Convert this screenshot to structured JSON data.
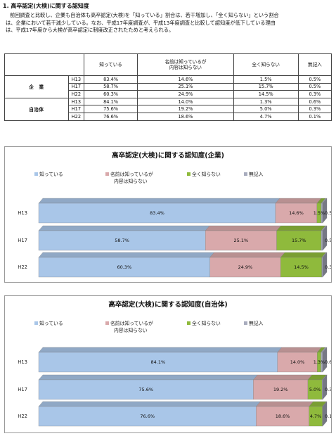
{
  "heading": "1. 高卒認定(大検)に関する認知度",
  "paragraph_lines": [
    "前回調査と比較し、企業も自治体も高卒認定(大検)を「知っている」割合は、若干増加し、「全く知らない」という割合",
    "は、企業において若干減少している。なお、平成17年度調査が、平成13年度調査と比較して認知度が低下している理由",
    "は、平成17年度から大検が高卒認定に制度改正されたためと考えられる。"
  ],
  "table": {
    "headers": [
      "知っている",
      "名前は知っているが\n内容は知らない",
      "全く知らない",
      "無記入"
    ],
    "groups": [
      {
        "label": "企　業",
        "rows": [
          {
            "year": "H13",
            "cells": [
              "83.4%",
              "14.6%",
              "1.5%",
              "0.5%"
            ]
          },
          {
            "year": "H17",
            "cells": [
              "58.7%",
              "25.1%",
              "15.7%",
              "0.5%"
            ]
          },
          {
            "year": "H22",
            "cells": [
              "60.3%",
              "24.9%",
              "14.5%",
              "0.3%"
            ]
          }
        ]
      },
      {
        "label": "自治体",
        "rows": [
          {
            "year": "H13",
            "cells": [
              "84.1%",
              "14.0%",
              "1.3%",
              "0.6%"
            ]
          },
          {
            "year": "H17",
            "cells": [
              "75.6%",
              "19.2%",
              "5.0%",
              "0.3%"
            ]
          },
          {
            "year": "H22",
            "cells": [
              "76.6%",
              "18.6%",
              "4.7%",
              "0.1%"
            ]
          }
        ]
      }
    ]
  },
  "colors": [
    "#a9c6e8",
    "#d9a9ab",
    "#8fba3c",
    "#a8acbe"
  ],
  "chart_data": [
    {
      "type": "bar",
      "orientation": "horizontal-stacked",
      "title": "高卒認定(大検)に関する認知度(企業)",
      "categories": [
        "H13",
        "H17",
        "H22"
      ],
      "legend": [
        "知っている",
        "名前は知っているが\n内容は知らない",
        "全く知らない",
        "無記入"
      ],
      "legend_position": "top",
      "series": [
        {
          "name": "知っている",
          "values": [
            83.4,
            58.7,
            60.3
          ]
        },
        {
          "name": "名前は知っているが内容は知らない",
          "values": [
            14.6,
            25.1,
            24.9
          ]
        },
        {
          "name": "全く知らない",
          "values": [
            1.5,
            15.7,
            14.5
          ]
        },
        {
          "name": "無記入",
          "values": [
            0.5,
            0.5,
            0.3
          ]
        }
      ],
      "xlim": [
        0,
        100
      ],
      "grid": false
    },
    {
      "type": "bar",
      "orientation": "horizontal-stacked",
      "title": "高卒認定(大検)に関する認知度(自治体)",
      "categories": [
        "H13",
        "H17",
        "H22"
      ],
      "legend": [
        "知っている",
        "名前は知っているが\n内容は知らない",
        "全く知らない",
        "無記入"
      ],
      "legend_position": "top",
      "series": [
        {
          "name": "知っている",
          "values": [
            84.1,
            75.6,
            76.6
          ]
        },
        {
          "name": "名前は知っているが内容は知らない",
          "values": [
            14.0,
            19.2,
            18.6
          ]
        },
        {
          "name": "全く知らない",
          "values": [
            1.3,
            5.0,
            4.7
          ]
        },
        {
          "name": "無記入",
          "values": [
            0.6,
            0.3,
            0.1
          ]
        }
      ],
      "xlim": [
        0,
        100
      ],
      "grid": false
    }
  ]
}
